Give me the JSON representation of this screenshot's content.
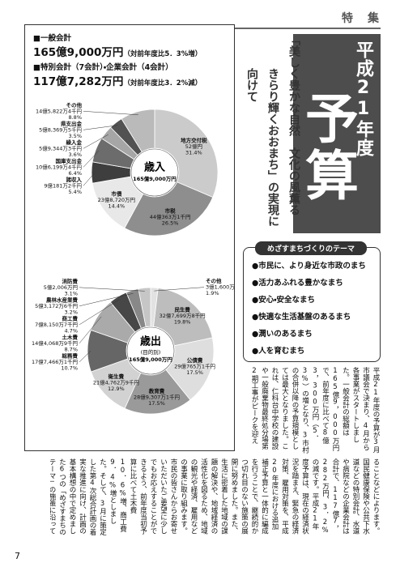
{
  "header": {
    "section": "特　集",
    "title_year": "平成21年度",
    "title_main": "予算",
    "subtitle_lines": [
      "「美しく豊かな自然　文化の風薫る",
      "きらり輝くおおまち」の実現に向けて"
    ]
  },
  "summary": {
    "general_heading": "■一般会計",
    "general_amount": "165億9,000万円",
    "general_note": "（対前年度比5．3%増）",
    "special_heading": "■特別会計（7会計）・企業会計（4会計）",
    "special_amount": "117億7,282万円",
    "special_note": "（対前年度比3．2%減）"
  },
  "chart_data": [
    {
      "type": "pie",
      "title": "歳入",
      "total": "165億9,000万円",
      "categories": [
        "地方交付税",
        "市税",
        "市債",
        "諸収入",
        "国庫支出金",
        "繰入金",
        "県支出金",
        "その他"
      ],
      "amounts": [
        "52億円",
        "44億363万1千円",
        "23億8,720万円",
        "9億181万2千円",
        "10億6,199万4千円",
        "5億9,344万3千円",
        "5億8,369万5千円",
        "14億5,822万4千円"
      ],
      "values": [
        31.4,
        26.5,
        14.4,
        5.4,
        6.4,
        3.6,
        3.5,
        8.8
      ],
      "value_labels": [
        "31.4%",
        "26.5%",
        "14.4%",
        "5.4%",
        "6.4%",
        "3.6%",
        "3.5%",
        "8.8%"
      ],
      "colors": [
        "#cbcbcb",
        "#8e8e8e",
        "#e8e8e8",
        "#3e3e3e",
        "#6c6c6c",
        "#a6a6a6",
        "#525252",
        "#bababa"
      ]
    },
    {
      "type": "pie",
      "title": "歳出",
      "subtitle": "(目的別)",
      "total": "165億9,000万円",
      "categories": [
        "その他",
        "民生費",
        "公債費",
        "教育費",
        "衛生費",
        "総務費",
        "土木費",
        "商工費",
        "農林水産業費",
        "消防費"
      ],
      "amounts": [
        "3億1,600万9千円",
        "32億7,699万8千円",
        "29億765万1千円",
        "28億9,307万1千円",
        "21億4,762万9千円",
        "17億7,466万1千円",
        "14億4,068万9千円",
        "7億8,150万7千円",
        "5億3,172万6千円",
        "5億2,006万円"
      ],
      "values": [
        1.9,
        19.8,
        17.5,
        17.5,
        12.9,
        10.7,
        8.7,
        4.7,
        3.2,
        3.1
      ],
      "value_labels": [
        "1.9%",
        "19.8%",
        "17.5%",
        "17.5%",
        "12.9%",
        "10.7%",
        "8.7%",
        "4.7%",
        "3.2%",
        "3.1%"
      ],
      "colors": [
        "#e2e2e2",
        "#bdbdbd",
        "#dedede",
        "#9a9a9a",
        "#d2d2d2",
        "#666666",
        "#aaaaaa",
        "#474747",
        "#888888",
        "#c6c6c6"
      ]
    }
  ],
  "themes": {
    "title": "めざすまちづくりのテーマ",
    "items": [
      "●市民に、より身近な市政のまち",
      "●活力あふれる豊かなまち",
      "●安心・安全なまち",
      "●快適な生活基盤のあるまち",
      "●潤いのあるまち",
      "●人を育むまち"
    ]
  },
  "body": {
    "upper": "平成21年度の予算が3月市議会で決まり、4月から各事業がスタートしました。一般会計の総額は165億9，000万円で、前年度に比べて8億3，300万円（5．3%）の増となり、3市村の合併以降の予算規模としては最大となりました。これは、仁科台中学校の建設や一般廃棄物最終処分場第2期工事がピークを迎え",
    "lower": "ることなどによります。国民健康保険や公共下水道などの特別会計、水道や病院などの企業会計は合計で、117億7，282万円、3．2%の減です。平成21年度予算は、現在の経済状況を踏まえ、緊急の経済対策、雇用対策を、平成20年度における追加補正予算と一体的に編成を行うことで、継続的かつ切れ目のない施策の展開に努めました。また、生活に密着した地域の課題の解決や、地域経済の活性化を図るため、地域の観光や経済、雇用などの事業に取り組みます。市民の皆さんからお寄せいただいたご要望に少しでもお応えすることができるよう、前年度当初予算に比べて土木費10．6%増、商工費9．4%増としました。そして、3月に策定した第4次総合計画の着実な推進に向け、計画の基本構想の中で定めました6つの「めざすまちのテーマ」の施策に沿って編成しました。"
  },
  "page_number": "7"
}
